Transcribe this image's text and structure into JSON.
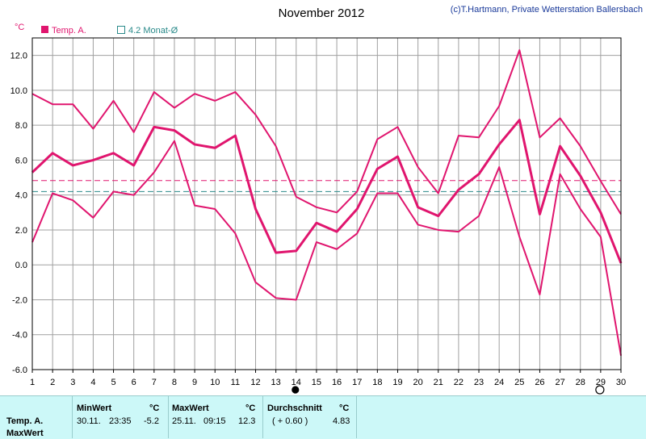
{
  "header": {
    "title": "November 2012",
    "copyright": "(c)T.Hartmann, Private Wetterstation Ballersbach",
    "unit": "°C"
  },
  "legend": {
    "temp_label": "Temp. A.",
    "monthavg_label": "4.2 Monat-Ø"
  },
  "colors": {
    "series": "#e0156e",
    "reference": "#2a8a8a",
    "grid": "#a0a0a0",
    "panel": "#ccf8f8"
  },
  "chart_data": {
    "type": "line",
    "title": "November 2012",
    "ylabel": "°C",
    "xlabel": "",
    "x": [
      1,
      2,
      3,
      4,
      5,
      6,
      7,
      8,
      9,
      10,
      11,
      12,
      13,
      14,
      15,
      16,
      17,
      18,
      19,
      20,
      21,
      22,
      23,
      24,
      25,
      26,
      27,
      28,
      29,
      30
    ],
    "xlim": [
      1,
      30
    ],
    "ylim": [
      -6,
      13
    ],
    "yticks": [
      -6,
      -4,
      -2,
      0,
      2,
      4,
      6,
      8,
      10,
      12
    ],
    "grid": true,
    "legend_position": "top-left",
    "series": [
      {
        "role": "max",
        "values": [
          9.8,
          9.2,
          9.2,
          7.8,
          9.4,
          7.6,
          9.9,
          9.0,
          9.8,
          9.4,
          9.9,
          8.6,
          6.8,
          3.9,
          3.3,
          3.0,
          4.2,
          7.2,
          7.9,
          5.6,
          4.1,
          7.4,
          7.3,
          9.1,
          12.3,
          7.3,
          8.4,
          6.8,
          4.8,
          2.9
        ]
      },
      {
        "role": "mean",
        "values": [
          5.3,
          6.4,
          5.7,
          6.0,
          6.4,
          5.7,
          7.9,
          7.7,
          6.9,
          6.7,
          7.4,
          3.2,
          0.7,
          0.8,
          2.4,
          1.9,
          3.2,
          5.5,
          6.2,
          3.3,
          2.8,
          4.3,
          5.2,
          6.9,
          8.3,
          2.9,
          6.8,
          5.1,
          3.0,
          0.1
        ]
      },
      {
        "role": "min",
        "values": [
          1.3,
          4.1,
          3.7,
          2.7,
          4.2,
          4.0,
          5.3,
          7.1,
          3.4,
          3.2,
          1.8,
          -1.0,
          -1.9,
          -2.0,
          1.3,
          0.9,
          1.8,
          4.1,
          4.1,
          2.3,
          2.0,
          1.9,
          2.8,
          5.6,
          1.6,
          -1.7,
          5.2,
          3.2,
          1.6,
          -5.2
        ]
      }
    ],
    "reference_lines": [
      {
        "role": "month_average",
        "value": 4.2
      },
      {
        "role": "mean_of_period",
        "value": 4.83
      }
    ],
    "markers": [
      {
        "x": 14,
        "style": "filled"
      },
      {
        "x": 29,
        "style": "open"
      }
    ]
  },
  "stats": {
    "row_label": "Temp. A.",
    "row_label2": "MaxWert",
    "min": {
      "header": "MinWert",
      "unit": "°C",
      "date": "30.11.",
      "time": "23:35",
      "value": "-5.2"
    },
    "max": {
      "header": "MaxWert",
      "unit": "°C",
      "date": "25.11.",
      "time": "09:15",
      "value": "12.3"
    },
    "avg": {
      "header": "Durchschnitt",
      "unit": "°C",
      "delta": "( + 0.60 )",
      "value": "4.83"
    }
  }
}
